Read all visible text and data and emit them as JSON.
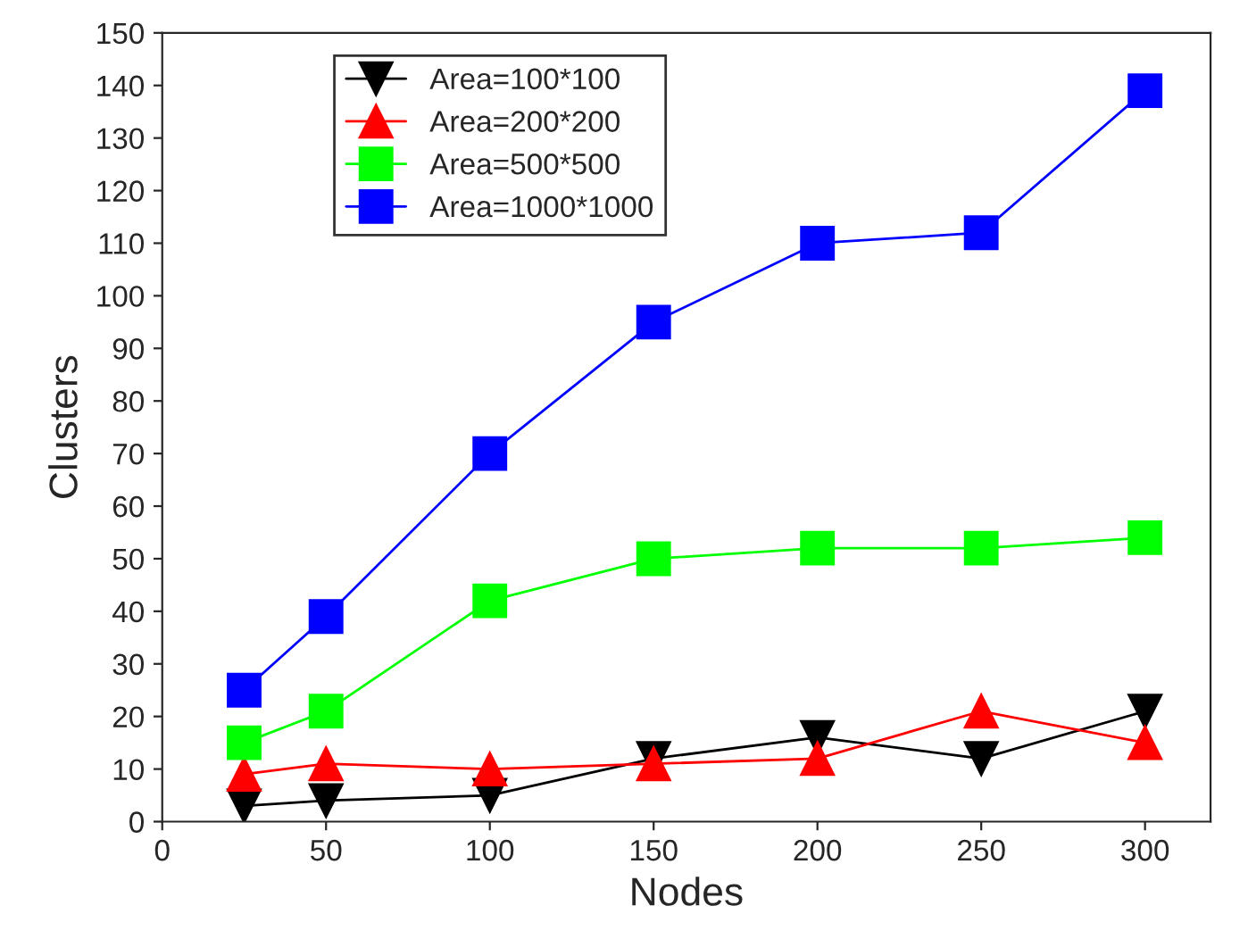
{
  "chart_data": {
    "type": "line",
    "xlabel": "Nodes",
    "ylabel": "Clusters",
    "x": [
      25,
      50,
      100,
      150,
      200,
      250,
      300
    ],
    "series": [
      {
        "name": "Area=100*100",
        "color": "#000000",
        "marker": "triangle_down",
        "values": [
          3,
          4,
          5,
          12,
          16,
          12,
          21
        ]
      },
      {
        "name": "Area=200*200",
        "color": "#ff0000",
        "marker": "triangle",
        "values": [
          9,
          11,
          10,
          11,
          12,
          21,
          15
        ]
      },
      {
        "name": "Area=500*500",
        "color": "#00ff00",
        "marker": "square",
        "values": [
          15,
          21,
          42,
          50,
          52,
          52,
          54
        ]
      },
      {
        "name": "Area=1000*1000",
        "color": "#0000ff",
        "marker": "square",
        "values": [
          25,
          39,
          70,
          95,
          110,
          112,
          139
        ]
      }
    ],
    "xlim": [
      0,
      320
    ],
    "xticks": [
      0,
      50,
      100,
      150,
      200,
      250,
      300
    ],
    "ylim": [
      0,
      150
    ],
    "yticks": [
      0,
      10,
      20,
      30,
      40,
      50,
      60,
      70,
      80,
      90,
      100,
      110,
      120,
      130,
      140,
      150
    ],
    "grid": false,
    "legend": "top left",
    "line_style": "solid"
  }
}
